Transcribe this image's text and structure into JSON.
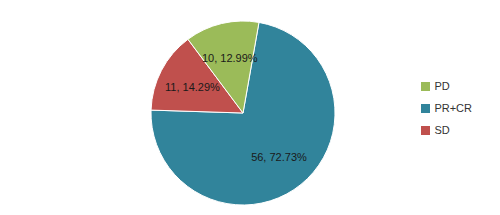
{
  "chart_data": {
    "type": "pie",
    "categories": [
      "PR+CR",
      "SD",
      "PD"
    ],
    "values": [
      56,
      11,
      10
    ],
    "value_labels": [
      "56, 72.73%",
      "11, 14.29%",
      "10, 12.99%"
    ],
    "colors": [
      "#31849b",
      "#c0504d",
      "#9bbb59"
    ],
    "legend": "right",
    "data_labels": true
  }
}
